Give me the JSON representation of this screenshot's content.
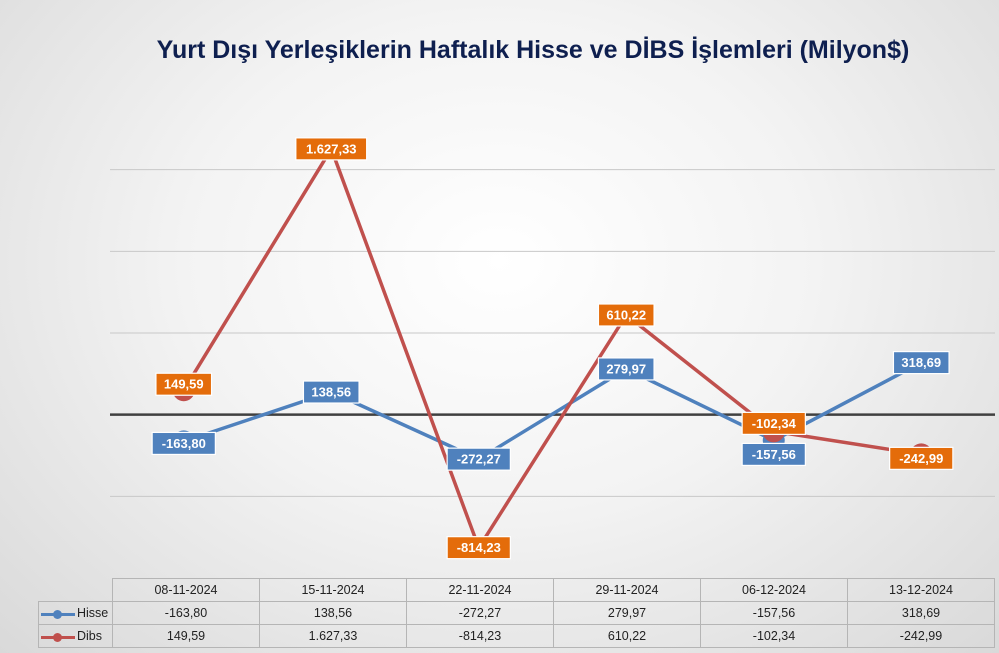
{
  "chart_data": {
    "type": "line",
    "title": "Yurt Dışı Yerleşiklerin Haftalık Hisse ve DİBS İşlemleri (Milyon$)",
    "categories": [
      "08-11-2024",
      "15-11-2024",
      "22-11-2024",
      "29-11-2024",
      "06-12-2024",
      "13-12-2024"
    ],
    "series": [
      {
        "name": "Hisse",
        "color": "#4f81bd",
        "label_color": "#4f81bd",
        "values": [
          -163.8,
          138.56,
          -272.27,
          279.97,
          -157.56,
          318.69
        ],
        "labels": [
          "-163,80",
          "138,56",
          "-272,27",
          "279,97",
          "-157,56",
          "318,69"
        ]
      },
      {
        "name": "Dibs",
        "color": "#c0504d",
        "label_color": "#e46c0a",
        "values": [
          149.59,
          1627.33,
          -814.23,
          610.22,
          -102.34,
          -242.99
        ],
        "labels": [
          "149,59",
          "1.627,33",
          "-814,23",
          "610,22",
          "-102,34",
          "-242,99"
        ]
      }
    ],
    "ylim": [
      -1000,
      2000
    ],
    "grid": true,
    "legend": "data-table"
  }
}
